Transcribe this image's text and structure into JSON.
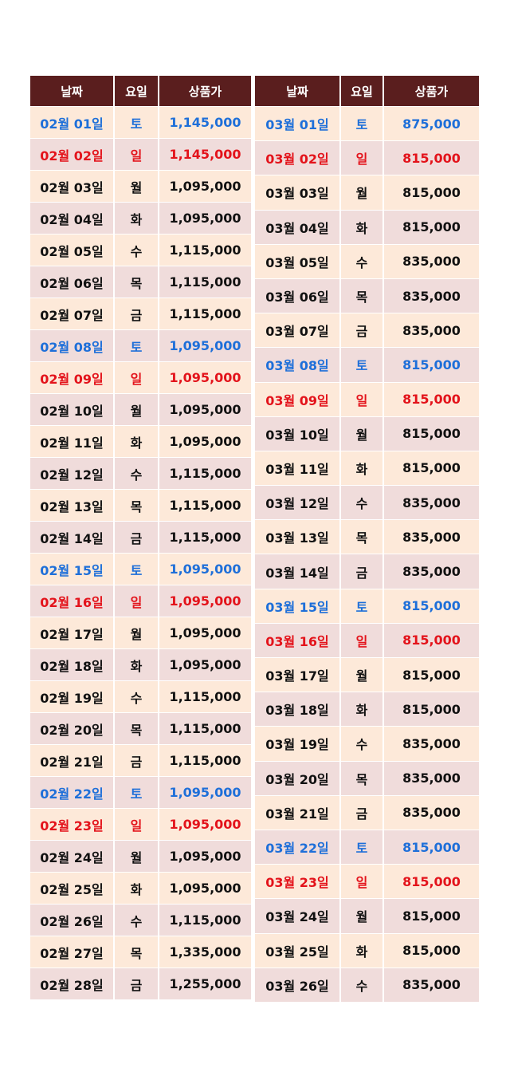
{
  "headers": [
    "날짜",
    "요일",
    "상품가"
  ],
  "colors": {
    "header_bg": "#5a1e1e",
    "row_odd": "#fde9d9",
    "row_even": "#f0dcdb",
    "saturday": "#1e6fd9",
    "sunday": "#e3131b"
  },
  "february": [
    [
      "02월 01일",
      "토",
      "1,145,000"
    ],
    [
      "02월 02일",
      "일",
      "1,145,000"
    ],
    [
      "02월 03일",
      "월",
      "1,095,000"
    ],
    [
      "02월 04일",
      "화",
      "1,095,000"
    ],
    [
      "02월 05일",
      "수",
      "1,115,000"
    ],
    [
      "02월 06일",
      "목",
      "1,115,000"
    ],
    [
      "02월 07일",
      "금",
      "1,115,000"
    ],
    [
      "02월 08일",
      "토",
      "1,095,000"
    ],
    [
      "02월 09일",
      "일",
      "1,095,000"
    ],
    [
      "02월 10일",
      "월",
      "1,095,000"
    ],
    [
      "02월 11일",
      "화",
      "1,095,000"
    ],
    [
      "02월 12일",
      "수",
      "1,115,000"
    ],
    [
      "02월 13일",
      "목",
      "1,115,000"
    ],
    [
      "02월 14일",
      "금",
      "1,115,000"
    ],
    [
      "02월 15일",
      "토",
      "1,095,000"
    ],
    [
      "02월 16일",
      "일",
      "1,095,000"
    ],
    [
      "02월 17일",
      "월",
      "1,095,000"
    ],
    [
      "02월 18일",
      "화",
      "1,095,000"
    ],
    [
      "02월 19일",
      "수",
      "1,115,000"
    ],
    [
      "02월 20일",
      "목",
      "1,115,000"
    ],
    [
      "02월 21일",
      "금",
      "1,115,000"
    ],
    [
      "02월 22일",
      "토",
      "1,095,000"
    ],
    [
      "02월 23일",
      "일",
      "1,095,000"
    ],
    [
      "02월 24일",
      "월",
      "1,095,000"
    ],
    [
      "02월 25일",
      "화",
      "1,095,000"
    ],
    [
      "02월 26일",
      "수",
      "1,115,000"
    ],
    [
      "02월 27일",
      "목",
      "1,335,000"
    ],
    [
      "02월 28일",
      "금",
      "1,255,000"
    ]
  ],
  "march": [
    [
      "03월 01일",
      "토",
      "875,000"
    ],
    [
      "03월 02일",
      "일",
      "815,000"
    ],
    [
      "03월 03일",
      "월",
      "815,000"
    ],
    [
      "03월 04일",
      "화",
      "815,000"
    ],
    [
      "03월 05일",
      "수",
      "835,000"
    ],
    [
      "03월 06일",
      "목",
      "835,000"
    ],
    [
      "03월 07일",
      "금",
      "835,000"
    ],
    [
      "03월 08일",
      "토",
      "815,000"
    ],
    [
      "03월 09일",
      "일",
      "815,000"
    ],
    [
      "03월 10일",
      "월",
      "815,000"
    ],
    [
      "03월 11일",
      "화",
      "815,000"
    ],
    [
      "03월 12일",
      "수",
      "835,000"
    ],
    [
      "03월 13일",
      "목",
      "835,000"
    ],
    [
      "03월 14일",
      "금",
      "835,000"
    ],
    [
      "03월 15일",
      "토",
      "815,000"
    ],
    [
      "03월 16일",
      "일",
      "815,000"
    ],
    [
      "03월 17일",
      "월",
      "815,000"
    ],
    [
      "03월 18일",
      "화",
      "815,000"
    ],
    [
      "03월 19일",
      "수",
      "835,000"
    ],
    [
      "03월 20일",
      "목",
      "835,000"
    ],
    [
      "03월 21일",
      "금",
      "835,000"
    ],
    [
      "03월 22일",
      "토",
      "815,000"
    ],
    [
      "03월 23일",
      "일",
      "815,000"
    ],
    [
      "03월 24일",
      "월",
      "815,000"
    ],
    [
      "03월 25일",
      "화",
      "815,000"
    ],
    [
      "03월 26일",
      "수",
      "835,000"
    ]
  ]
}
